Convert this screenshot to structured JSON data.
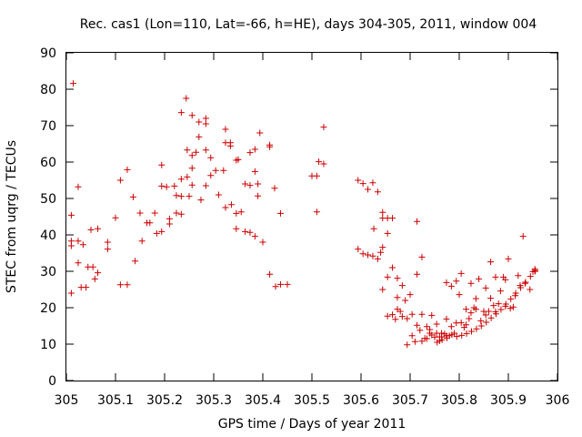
{
  "chart_data": {
    "type": "scatter",
    "title": "Rec. cas1 (Lon=110, Lat=-66, h=HE), days 304-305, 2011, window 004",
    "xlabel": "GPS time / Days of year 2011",
    "ylabel": "STEC from uqrg / TECUs",
    "xlim": [
      305.0,
      306.0
    ],
    "ylim": [
      0,
      90
    ],
    "x_ticks": [
      "305",
      "305.1",
      "305.2",
      "305.3",
      "305.4",
      "305.5",
      "305.6",
      "305.7",
      "305.8",
      "305.9",
      "306"
    ],
    "y_ticks": [
      "0",
      "10",
      "20",
      "30",
      "40",
      "50",
      "60",
      "70",
      "80",
      "90"
    ],
    "grid": false,
    "marker": "+",
    "color": "#cc0000",
    "series": [
      {
        "points": [
          [
            305.014,
            81.6
          ],
          [
            305.01,
            45.4
          ],
          [
            305.01,
            38.3
          ],
          [
            305.01,
            37.0
          ],
          [
            305.01,
            24.0
          ],
          [
            305.024,
            53.2
          ],
          [
            305.024,
            38.3
          ],
          [
            305.024,
            32.3
          ],
          [
            305.03,
            25.6
          ],
          [
            305.034,
            37.3
          ],
          [
            305.04,
            25.6
          ],
          [
            305.044,
            31.2
          ],
          [
            305.05,
            41.4
          ],
          [
            305.054,
            31.2
          ],
          [
            305.058,
            27.9
          ],
          [
            305.064,
            29.6
          ],
          [
            305.064,
            41.7
          ],
          [
            305.084,
            38.0
          ],
          [
            305.084,
            36.1
          ],
          [
            305.1,
            44.7
          ],
          [
            305.11,
            55.0
          ],
          [
            305.11,
            26.3
          ],
          [
            305.124,
            57.9
          ],
          [
            305.124,
            26.3
          ],
          [
            305.136,
            50.4
          ],
          [
            305.14,
            32.8
          ],
          [
            305.15,
            46.0
          ],
          [
            305.154,
            38.3
          ],
          [
            305.164,
            43.3
          ],
          [
            305.17,
            43.3
          ],
          [
            305.18,
            46.0
          ],
          [
            305.184,
            40.4
          ],
          [
            305.194,
            59.2
          ],
          [
            305.194,
            53.4
          ],
          [
            305.194,
            40.9
          ],
          [
            305.204,
            53.2
          ],
          [
            305.21,
            44.4
          ],
          [
            305.21,
            43.0
          ],
          [
            305.22,
            53.4
          ],
          [
            305.224,
            50.8
          ],
          [
            305.224,
            46.0
          ],
          [
            305.234,
            73.6
          ],
          [
            305.234,
            55.3
          ],
          [
            305.234,
            50.6
          ],
          [
            305.234,
            45.7
          ],
          [
            305.244,
            77.5
          ],
          [
            305.246,
            63.3
          ],
          [
            305.246,
            55.9
          ],
          [
            305.25,
            50.6
          ],
          [
            305.256,
            72.8
          ],
          [
            305.256,
            61.8
          ],
          [
            305.256,
            58.3
          ],
          [
            305.256,
            53.7
          ],
          [
            305.264,
            62.7
          ],
          [
            305.27,
            71.0
          ],
          [
            305.27,
            66.9
          ],
          [
            305.274,
            49.6
          ],
          [
            305.284,
            72.0
          ],
          [
            305.284,
            70.5
          ],
          [
            305.284,
            63.3
          ],
          [
            305.284,
            53.5
          ],
          [
            305.294,
            61.2
          ],
          [
            305.294,
            56.3
          ],
          [
            305.304,
            57.7
          ],
          [
            305.31,
            51.0
          ],
          [
            305.32,
            57.7
          ],
          [
            305.324,
            69.0
          ],
          [
            305.324,
            65.3
          ],
          [
            305.324,
            47.5
          ],
          [
            305.334,
            65.3
          ],
          [
            305.334,
            64.4
          ],
          [
            305.336,
            48.3
          ],
          [
            305.346,
            60.5
          ],
          [
            305.346,
            45.9
          ],
          [
            305.346,
            41.7
          ],
          [
            305.35,
            60.7
          ],
          [
            305.356,
            46.3
          ],
          [
            305.364,
            54.0
          ],
          [
            305.364,
            40.9
          ],
          [
            305.374,
            62.6
          ],
          [
            305.374,
            53.6
          ],
          [
            305.374,
            40.7
          ],
          [
            305.384,
            63.5
          ],
          [
            305.384,
            57.4
          ],
          [
            305.384,
            39.6
          ],
          [
            305.39,
            54.0
          ],
          [
            305.39,
            50.7
          ],
          [
            305.394,
            68.0
          ],
          [
            305.4,
            38.0
          ],
          [
            305.414,
            64.7
          ],
          [
            305.414,
            64.2
          ],
          [
            305.414,
            29.2
          ],
          [
            305.424,
            52.8
          ],
          [
            305.426,
            25.8
          ],
          [
            305.436,
            45.9
          ],
          [
            305.436,
            26.4
          ],
          [
            305.45,
            26.4
          ],
          [
            305.5,
            56.2
          ],
          [
            305.51,
            56.2
          ],
          [
            305.51,
            46.3
          ],
          [
            305.514,
            60.1
          ],
          [
            305.524,
            69.6
          ],
          [
            305.524,
            59.5
          ],
          [
            305.594,
            55.0
          ],
          [
            305.594,
            36.1
          ],
          [
            305.604,
            54.1
          ],
          [
            305.604,
            34.8
          ],
          [
            305.614,
            52.5
          ],
          [
            305.614,
            34.5
          ],
          [
            305.624,
            54.3
          ],
          [
            305.624,
            34.2
          ],
          [
            305.626,
            41.7
          ],
          [
            305.634,
            51.8
          ],
          [
            305.634,
            33.4
          ],
          [
            305.64,
            35.2
          ],
          [
            305.644,
            46.2
          ],
          [
            305.644,
            44.6
          ],
          [
            305.644,
            36.6
          ],
          [
            305.644,
            25.0
          ],
          [
            305.654,
            44.6
          ],
          [
            305.654,
            40.4
          ],
          [
            305.654,
            28.4
          ],
          [
            305.654,
            17.7
          ],
          [
            305.664,
            44.6
          ],
          [
            305.664,
            31.0
          ],
          [
            305.664,
            18.1
          ],
          [
            305.67,
            16.8
          ],
          [
            305.674,
            28.1
          ],
          [
            305.674,
            22.8
          ],
          [
            305.674,
            19.6
          ],
          [
            305.68,
            19.0
          ],
          [
            305.684,
            26.1
          ],
          [
            305.684,
            17.6
          ],
          [
            305.69,
            22.0
          ],
          [
            305.694,
            17.0
          ],
          [
            305.694,
            9.8
          ],
          [
            305.7,
            23.6
          ],
          [
            305.704,
            18.2
          ],
          [
            305.704,
            12.3
          ],
          [
            305.71,
            10.7
          ],
          [
            305.714,
            43.7
          ],
          [
            305.714,
            29.2
          ],
          [
            305.714,
            15.2
          ],
          [
            305.72,
            13.8
          ],
          [
            305.724,
            33.9
          ],
          [
            305.724,
            18.2
          ],
          [
            305.724,
            10.8
          ],
          [
            305.73,
            11.6
          ],
          [
            305.734,
            14.8
          ],
          [
            305.734,
            11.5
          ],
          [
            305.74,
            13.0
          ],
          [
            305.744,
            17.9
          ],
          [
            305.744,
            12.5
          ],
          [
            305.75,
            11.9
          ],
          [
            305.754,
            15.5
          ],
          [
            305.754,
            13.0
          ],
          [
            305.76,
            12.0
          ],
          [
            305.764,
            13.0
          ],
          [
            305.764,
            12.0
          ],
          [
            305.77,
            12.8
          ],
          [
            305.774,
            26.9
          ],
          [
            305.774,
            16.9
          ],
          [
            305.774,
            12.3
          ],
          [
            305.78,
            12.3
          ],
          [
            305.784,
            25.9
          ],
          [
            305.784,
            14.8
          ],
          [
            305.79,
            13.0
          ],
          [
            305.794,
            27.3
          ],
          [
            305.794,
            15.8
          ],
          [
            305.8,
            23.6
          ],
          [
            305.804,
            29.4
          ],
          [
            305.804,
            15.9
          ],
          [
            305.81,
            14.6
          ],
          [
            305.814,
            19.6
          ],
          [
            305.814,
            15.3
          ],
          [
            305.82,
            17.0
          ],
          [
            305.824,
            26.7
          ],
          [
            305.824,
            18.6
          ],
          [
            305.83,
            20.0
          ],
          [
            305.834,
            22.5
          ],
          [
            305.834,
            19.6
          ],
          [
            305.84,
            27.9
          ],
          [
            305.844,
            16.4
          ],
          [
            305.85,
            19.0
          ],
          [
            305.854,
            25.4
          ],
          [
            305.854,
            18.0
          ],
          [
            305.86,
            19.0
          ],
          [
            305.864,
            32.6
          ],
          [
            305.864,
            22.6
          ],
          [
            305.87,
            20.6
          ],
          [
            305.874,
            28.4
          ],
          [
            305.874,
            18.9
          ],
          [
            305.88,
            21.1
          ],
          [
            305.884,
            24.6
          ],
          [
            305.89,
            28.4
          ],
          [
            305.894,
            27.7
          ],
          [
            305.894,
            20.4
          ],
          [
            305.9,
            33.4
          ],
          [
            305.904,
            19.8
          ],
          [
            305.91,
            20.2
          ],
          [
            305.914,
            23.3
          ],
          [
            305.92,
            28.8
          ],
          [
            305.924,
            26.1
          ],
          [
            305.93,
            39.6
          ],
          [
            305.934,
            26.7
          ],
          [
            305.944,
            25.0
          ],
          [
            305.95,
            29.9
          ],
          [
            305.954,
            30.6
          ],
          [
            305.954,
            30.0
          ],
          [
            305.74,
            14.0
          ],
          [
            305.755,
            10.5
          ],
          [
            305.76,
            10.9
          ],
          [
            305.765,
            11.2
          ],
          [
            305.775,
            11.7
          ],
          [
            305.785,
            12.6
          ],
          [
            305.795,
            12.1
          ],
          [
            305.805,
            12.4
          ],
          [
            305.815,
            12.9
          ],
          [
            305.825,
            13.5
          ],
          [
            305.835,
            14.2
          ],
          [
            305.845,
            15.0
          ],
          [
            305.855,
            16.0
          ],
          [
            305.865,
            17.2
          ],
          [
            305.875,
            18.3
          ],
          [
            305.885,
            19.5
          ],
          [
            305.895,
            21.0
          ],
          [
            305.905,
            22.4
          ],
          [
            305.915,
            24.0
          ],
          [
            305.925,
            25.5
          ],
          [
            305.935,
            27.0
          ],
          [
            305.945,
            28.6
          ],
          [
            305.955,
            30.2
          ]
        ]
      }
    ]
  }
}
